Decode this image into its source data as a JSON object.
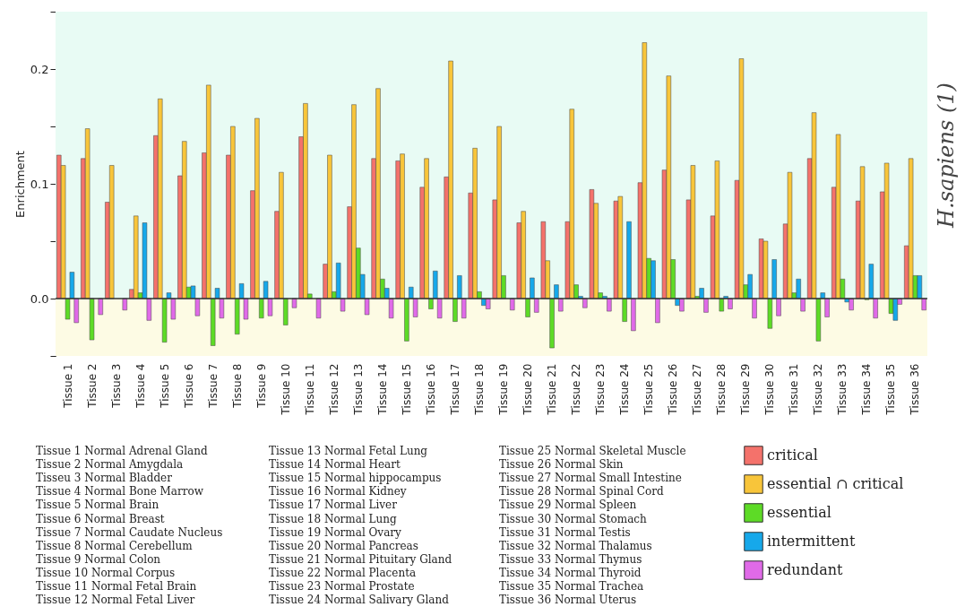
{
  "chart_data": {
    "type": "bar",
    "ylabel": "Enrichment",
    "categories": [
      "Tissue 1",
      "Tissue 2",
      "Tissue 3",
      "Tissue 4",
      "Tissue 5",
      "Tissue 6",
      "Tissue 7",
      "Tissue 8",
      "Tissue 9",
      "Tissue 10",
      "Tissue 11",
      "Tissue 12",
      "Tissue 13",
      "Tissue 14",
      "Tissue 15",
      "Tissue 16",
      "Tissue 17",
      "Tissue 18",
      "Tissue 19",
      "Tissue 20",
      "Tissue 21",
      "Tissue 22",
      "Tissue 23",
      "Tissue 24",
      "Tissue 25",
      "Tissue 26",
      "Tissue 27",
      "Tissue 28",
      "Tissue 29",
      "Tissue 30",
      "Tissue 31",
      "Tissue 32",
      "Tissue 33",
      "Tissue 34",
      "Tissue 35",
      "Tissue 36"
    ],
    "series": [
      {
        "name": "critical",
        "color": "#f4726b",
        "values": [
          0.125,
          0.122,
          0.084,
          0.008,
          0.142,
          0.107,
          0.127,
          0.125,
          0.094,
          0.076,
          0.141,
          0.03,
          0.08,
          0.122,
          0.12,
          0.097,
          0.106,
          0.092,
          0.086,
          0.066,
          0.067,
          0.067,
          0.095,
          0.085,
          0.101,
          0.112,
          0.086,
          0.072,
          0.103,
          0.052,
          0.065,
          0.122,
          0.097,
          0.085,
          0.093,
          0.046
        ]
      },
      {
        "name": "essential ∩ critical",
        "color": "#f8c53a",
        "values": [
          0.116,
          0.148,
          0.116,
          0.072,
          0.174,
          0.137,
          0.186,
          0.15,
          0.157,
          0.11,
          0.17,
          0.125,
          0.169,
          0.183,
          0.126,
          0.122,
          0.207,
          0.131,
          0.15,
          0.076,
          0.033,
          0.165,
          0.083,
          0.089,
          0.223,
          0.194,
          0.116,
          0.12,
          0.209,
          0.05,
          0.11,
          0.162,
          0.143,
          0.115,
          0.118,
          0.122
        ]
      },
      {
        "name": "essential",
        "color": "#5ddb26",
        "values": [
          -0.018,
          -0.036,
          null,
          0.005,
          -0.038,
          0.01,
          -0.041,
          -0.031,
          -0.017,
          -0.023,
          0.004,
          0.006,
          0.044,
          0.017,
          -0.037,
          -0.009,
          -0.02,
          0.006,
          0.02,
          -0.016,
          -0.043,
          0.012,
          0.005,
          -0.02,
          0.035,
          0.034,
          0.002,
          -0.011,
          0.012,
          -0.026,
          0.005,
          -0.037,
          0.017,
          -0.001,
          -0.013,
          0.02
        ]
      },
      {
        "name": "intermittent",
        "color": "#16a8ea",
        "values": [
          0.023,
          null,
          null,
          0.066,
          0.005,
          0.011,
          0.009,
          0.013,
          0.015,
          null,
          null,
          0.031,
          0.021,
          0.009,
          0.01,
          0.024,
          0.02,
          -0.006,
          null,
          0.018,
          0.012,
          0.002,
          0.002,
          0.067,
          0.033,
          -0.006,
          0.009,
          0.002,
          0.021,
          0.034,
          0.017,
          0.005,
          -0.003,
          0.03,
          -0.019,
          0.02
        ]
      },
      {
        "name": "redundant",
        "color": "#e06ae8",
        "values": [
          -0.021,
          -0.014,
          -0.01,
          -0.019,
          -0.018,
          -0.015,
          -0.017,
          -0.018,
          -0.015,
          -0.008,
          -0.017,
          -0.011,
          -0.014,
          -0.017,
          -0.016,
          -0.017,
          -0.017,
          -0.009,
          -0.01,
          -0.012,
          -0.011,
          -0.008,
          -0.011,
          -0.028,
          -0.021,
          -0.011,
          -0.012,
          -0.009,
          -0.017,
          -0.015,
          -0.011,
          -0.016,
          -0.01,
          -0.017,
          -0.005,
          -0.01
        ]
      }
    ],
    "ylim": [
      -0.05,
      0.25
    ],
    "yticks": [
      {
        "value": -0.05,
        "label": null
      },
      {
        "value": 0,
        "label": "0.0"
      },
      {
        "value": 0.05,
        "label": null
      },
      {
        "value": 0.1,
        "label": "0.1"
      },
      {
        "value": 0.15,
        "label": null
      },
      {
        "value": 0.2,
        "label": "0.2"
      },
      {
        "value": 0.25,
        "label": null
      }
    ],
    "bands": [
      {
        "axis": "y",
        "from": 0,
        "to": 0.25,
        "color": "#e8fbf4"
      },
      {
        "axis": "y",
        "from": -0.05,
        "to": 0,
        "color": "#fdfbe4"
      }
    ],
    "ref_lines": [
      {
        "axis": "y",
        "value": 0,
        "color": "#333333"
      }
    ],
    "legend": "bottom right",
    "grid": false,
    "annotations": [
      "H.sapiens (1)",
      "Tissue 1 Normal Adrenal Gland",
      "Tissue 2 Normal Amygdala",
      "Tisseu 3 Normal Bladder",
      "Tissue 4 Normal Bone Marrow",
      "Tissue 5 Normal Brain",
      "Tissue 6 Normal Breast",
      "Tissue 7 Normal Caudate Nucleus",
      "Tissue 8 Normal Cerebellum",
      "Tissue 9 Normal Colon",
      "Tissue 10 Normal Corpus",
      "Tissue 11 Normal Fetal Brain",
      "Tissue 12 Normal Fetal Liver",
      "Tissue 13 Normal Fetal Lung",
      "Tissue 14 Normal Heart",
      "Tissue 15 Normal hippocampus",
      "Tissue 16 Normal Kidney",
      "Tissue 17 Normal Liver",
      "Tissue 18 Normal Lung",
      "Tissue 19 Normal Ovary",
      "Tissue 20 Normal Pancreas",
      "Tissue 21 Normal Pituitary Gland",
      "Tissue 22 Normal Placenta",
      "Tissue 23 Normal Prostate",
      "Tissue 24 Normal Salivary Gland",
      "Tissue 25 Normal Skeletal Muscle",
      "Tissue 26 Normal Skin",
      "Tissue 27 Normal Small Intestine",
      "Tissue 28 Normal Spinal Cord",
      "Tissue 29 Normal Spleen",
      "Tissue 30 Normal Stomach",
      "Tissue 31 Normal Testis",
      "Tissue 32 Normal Thalamus",
      "Tissue 33 Normal Thymus",
      "Tissue 34 Normal Thyroid",
      "Tissue 35 Normal Trachea",
      "Tissue 36 Normal Uterus"
    ]
  }
}
